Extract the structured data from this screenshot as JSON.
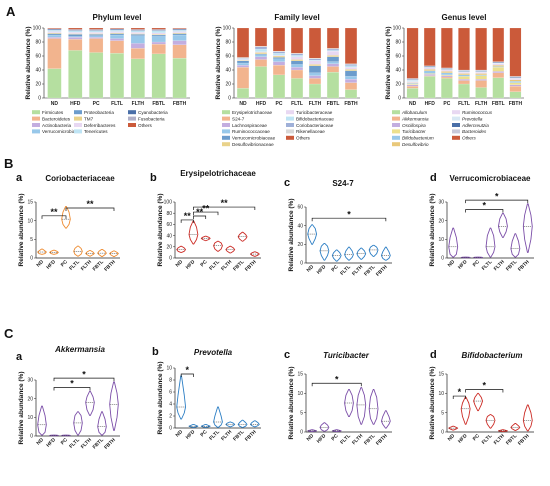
{
  "groups": [
    "ND",
    "HFD",
    "PC",
    "FLTL",
    "FLTH",
    "FBTL",
    "FBTH"
  ],
  "panel_labels": {
    "A": "A",
    "B": "B",
    "C": "C"
  },
  "colors": {
    "Firmicutes": "#b5dfa0",
    "Bacteroidetes": "#f2b48e",
    "Actinobacteria": "#c3aee0",
    "Verrucomicrobia": "#98c8ea",
    "Proteobacteria": "#6c9ccc",
    "TM7": "#e9d28a",
    "Deferribacteres": "#e8d8f2",
    "Tenericutes": "#bfe4f4",
    "Cyanobacteria": "#4a6fa8",
    "Fusobacteria": "#b0b0c8",
    "Others": "#cb5a3a",
    "Erysipelotrichaceae": "#b5dfa0",
    "S24-7": "#f2b48e",
    "Lachnospiraceae": "#c3aee0",
    "Ruminococcaceae": "#98c8ea",
    "Verrucomicrobiaceae": "#6c9ccc",
    "Desulfovibrionaceae": "#e9d28a",
    "Turicibacteraceae": "#e8d8f2",
    "Bifidobacteriaceae": "#bfe4f4",
    "Coriobacteriaceae": "#9fb0d8",
    "Rikenellaceae": "#d8d8d8",
    "Allobaculum": "#b5dfa0",
    "Akkermansia": "#f2b48e",
    "Oscillospira": "#c3aee0",
    "Turicibacter": "#ece08e",
    "Bifidobacterium": "#98c8ea",
    "Desulfovibrio": "#e9c87a",
    "Ruminococcus": "#e8d8f2",
    "Prevotella": "#d8e8f4",
    "Adlercreutzia": "#4a6fa8",
    "Bacteroides": "#c8c8d8"
  },
  "chart_data": [
    {
      "id": "A1",
      "type": "bar",
      "stacked": true,
      "title": "Phylum level",
      "ylabel": "Relative abundance (%)",
      "ylim": [
        0,
        100
      ],
      "yticks": [
        0,
        20,
        40,
        60,
        80,
        100
      ],
      "categories": [
        "ND",
        "HFD",
        "PC",
        "FLTL",
        "FLTH",
        "FBTL",
        "FBTH"
      ],
      "series": [
        {
          "name": "Firmicutes",
          "values": [
            42,
            68,
            65,
            64,
            56,
            63,
            57
          ]
        },
        {
          "name": "Bacteroidetes",
          "values": [
            43,
            16,
            20,
            18,
            15,
            14,
            19
          ]
        },
        {
          "name": "Actinobacteria",
          "values": [
            2,
            3,
            2,
            3,
            7,
            3,
            6
          ]
        },
        {
          "name": "Verrucomicrobia",
          "values": [
            3,
            1,
            2,
            5,
            11,
            8,
            8
          ]
        },
        {
          "name": "Proteobacteria",
          "values": [
            2,
            3,
            2,
            2,
            2,
            2,
            2
          ]
        },
        {
          "name": "TM7",
          "values": [
            1,
            1,
            1,
            1,
            1,
            1,
            1
          ]
        },
        {
          "name": "Deferribacteres",
          "values": [
            2,
            2,
            2,
            2,
            2,
            2,
            2
          ]
        },
        {
          "name": "Tenericutes",
          "values": [
            2,
            2,
            2,
            2,
            2,
            3,
            2
          ]
        },
        {
          "name": "Cyanobacteria",
          "values": [
            1,
            1,
            1,
            1,
            1,
            1,
            1
          ]
        },
        {
          "name": "Fusobacteria",
          "values": [
            1,
            1,
            1,
            1,
            1,
            1,
            1
          ]
        },
        {
          "name": "Others",
          "values": [
            1,
            2,
            2,
            1,
            2,
            2,
            1
          ]
        }
      ]
    },
    {
      "id": "A2",
      "type": "bar",
      "stacked": true,
      "title": "Family level",
      "ylabel": "Relative abundance (%)",
      "ylim": [
        0,
        100
      ],
      "yticks": [
        0,
        20,
        40,
        60,
        80,
        100
      ],
      "categories": [
        "ND",
        "HFD",
        "PC",
        "FLTL",
        "FLTH",
        "FBTL",
        "FBTH"
      ],
      "series": [
        {
          "name": "Erysipelotrichaceae",
          "values": [
            14,
            45,
            33,
            28,
            20,
            37,
            12
          ]
        },
        {
          "name": "S24-7",
          "values": [
            30,
            10,
            14,
            12,
            8,
            8,
            10
          ]
        },
        {
          "name": "Lachnospiraceae",
          "values": [
            3,
            4,
            5,
            4,
            4,
            4,
            5
          ]
        },
        {
          "name": "Ruminococcaceae",
          "values": [
            3,
            3,
            4,
            4,
            4,
            3,
            4
          ]
        },
        {
          "name": "Verrucomicrobiaceae",
          "values": [
            3,
            1,
            2,
            5,
            10,
            7,
            8
          ]
        },
        {
          "name": "Desulfovibrionaceae",
          "values": [
            1,
            2,
            2,
            2,
            2,
            2,
            2
          ]
        },
        {
          "name": "Turicibacteraceae",
          "values": [
            1,
            1,
            1,
            4,
            5,
            6,
            3
          ]
        },
        {
          "name": "Bifidobacteriaceae",
          "values": [
            1,
            4,
            3,
            2,
            1,
            1,
            2
          ]
        },
        {
          "name": "Coriobacteriaceae",
          "values": [
            1,
            3,
            2,
            2,
            2,
            2,
            2
          ]
        },
        {
          "name": "Rikenellaceae",
          "values": [
            1,
            1,
            1,
            1,
            1,
            1,
            1
          ]
        },
        {
          "name": "Others",
          "values": [
            42,
            26,
            33,
            36,
            43,
            29,
            51
          ]
        }
      ]
    },
    {
      "id": "A3",
      "type": "bar",
      "stacked": true,
      "title": "Genus level",
      "ylabel": "Relative abundance (%)",
      "ylim": [
        0,
        100
      ],
      "yticks": [
        0,
        20,
        40,
        60,
        80,
        100
      ],
      "categories": [
        "ND",
        "HFD",
        "PC",
        "FLTL",
        "FLTH",
        "FBTL",
        "FBTH"
      ],
      "series": [
        {
          "name": "Allobaculum",
          "values": [
            14,
            31,
            28,
            20,
            15,
            29,
            9
          ]
        },
        {
          "name": "Akkermansia",
          "values": [
            3,
            1,
            2,
            5,
            10,
            7,
            8
          ]
        },
        {
          "name": "Oscillospira",
          "values": [
            2,
            2,
            2,
            2,
            2,
            2,
            2
          ]
        },
        {
          "name": "Turicibacter",
          "values": [
            1,
            1,
            1,
            4,
            5,
            6,
            3
          ]
        },
        {
          "name": "Bifidobacterium",
          "values": [
            1,
            4,
            3,
            2,
            1,
            1,
            2
          ]
        },
        {
          "name": "Desulfovibrio",
          "values": [
            1,
            2,
            2,
            2,
            2,
            2,
            2
          ]
        },
        {
          "name": "Ruminococcus",
          "values": [
            1,
            2,
            2,
            2,
            2,
            2,
            2
          ]
        },
        {
          "name": "Prevotella",
          "values": [
            3,
            1,
            1,
            1,
            1,
            1,
            1
          ]
        },
        {
          "name": "Adlercreutzia",
          "values": [
            1,
            1,
            1,
            1,
            1,
            1,
            1
          ]
        },
        {
          "name": "Bacteroides",
          "values": [
            1,
            1,
            1,
            1,
            1,
            1,
            1
          ]
        },
        {
          "name": "Others",
          "values": [
            72,
            54,
            57,
            60,
            60,
            48,
            69
          ]
        }
      ]
    },
    {
      "id": "Ba",
      "type": "violin",
      "letter": "a",
      "title": "Coriobacteriaceae",
      "ylabel": "Relative abundance (%)",
      "ylim": [
        0,
        15
      ],
      "yticks": [
        0,
        5,
        10,
        15
      ],
      "color": "#ee8a2e",
      "categories": [
        "ND",
        "HFD",
        "PC",
        "FLTL",
        "FLTH",
        "FBTL",
        "FBTH"
      ],
      "stats": [
        [
          1,
          1.2,
          1.6,
          1.9,
          2.4
        ],
        [
          1,
          1.2,
          1.5,
          1.8,
          2.1
        ],
        [
          8,
          9,
          10.4,
          12.3,
          13.8
        ],
        [
          0.5,
          1,
          1.8,
          2.6,
          3.2
        ],
        [
          0.5,
          0.9,
          1.2,
          1.6,
          2
        ],
        [
          0.4,
          0.9,
          1.3,
          1.8,
          2.3
        ],
        [
          0.4,
          0.8,
          1.2,
          1.5,
          1.9
        ]
      ],
      "brackets": [
        {
          "from": "ND",
          "to": "PC",
          "y": 11.3,
          "label": "**"
        },
        {
          "from": "PC",
          "to": "FBTH",
          "y": 13.4,
          "label": "**"
        }
      ]
    },
    {
      "id": "Bb",
      "type": "violin",
      "letter": "b",
      "title": "Erysipelotrichaceae",
      "ylabel": "Relative abundance (%)",
      "ylim": [
        0,
        100
      ],
      "yticks": [
        0,
        20,
        40,
        60,
        80,
        100
      ],
      "color": "#cc2b25",
      "categories": [
        "ND",
        "HFD",
        "PC",
        "FLTL",
        "FLTH",
        "FBTL",
        "FBTH"
      ],
      "stats": [
        [
          10,
          12,
          15,
          18,
          21
        ],
        [
          25,
          33,
          42,
          55,
          66
        ],
        [
          31,
          33,
          35,
          37,
          39
        ],
        [
          12,
          16,
          22,
          27,
          30
        ],
        [
          9,
          12,
          15,
          18,
          21
        ],
        [
          30,
          34,
          38,
          42,
          46
        ],
        [
          3,
          5,
          7,
          9,
          11
        ]
      ],
      "brackets": [
        {
          "from": "ND",
          "to": "HFD",
          "y": 68,
          "label": "**"
        },
        {
          "from": "HFD",
          "to": "PC",
          "y": 75,
          "label": "**"
        },
        {
          "from": "HFD",
          "to": "FLTL",
          "y": 82,
          "label": "**"
        },
        {
          "from": "HFD",
          "to": "FBTH",
          "y": 91,
          "label": "**"
        }
      ]
    },
    {
      "id": "Bc",
      "type": "violin",
      "letter": "c",
      "title": "S24-7",
      "ylabel": "Relative abundance (%)",
      "ylim": [
        0,
        60
      ],
      "yticks": [
        0,
        20,
        40,
        60
      ],
      "color": "#2c7ec4",
      "categories": [
        "ND",
        "HFD",
        "PC",
        "FLTL",
        "FLTH",
        "FBTL",
        "FBTH"
      ],
      "stats": [
        [
          20,
          26,
          31,
          37,
          41
        ],
        [
          3,
          8,
          13,
          18,
          21
        ],
        [
          2,
          5,
          8,
          11,
          14
        ],
        [
          3,
          6,
          9,
          13,
          17
        ],
        [
          4,
          7,
          10,
          13,
          16
        ],
        [
          7,
          10,
          14,
          17,
          19
        ],
        [
          3,
          5,
          8,
          12,
          17
        ]
      ],
      "brackets": [
        {
          "from": "ND",
          "to": "FBTH",
          "y": 48,
          "label": "*"
        }
      ]
    },
    {
      "id": "Bd",
      "type": "violin",
      "letter": "d",
      "title": "Verrucomicrobiaceae",
      "ylabel": "Relative abundance (%)",
      "ylim": [
        0,
        30
      ],
      "yticks": [
        0,
        10,
        20,
        30
      ],
      "color": "#7b4ea8",
      "categories": [
        "ND",
        "HFD",
        "PC",
        "FLTL",
        "FLTH",
        "FBTL",
        "FBTH"
      ],
      "stats": [
        [
          0.5,
          2,
          6,
          11,
          16
        ],
        [
          0.1,
          0.2,
          0.3,
          0.4,
          0.5
        ],
        [
          0.1,
          0.2,
          0.3,
          0.4,
          0.5
        ],
        [
          0.5,
          3,
          6,
          12,
          16
        ],
        [
          11,
          14,
          17,
          21,
          24
        ],
        [
          0.5,
          2,
          5,
          9,
          13
        ],
        [
          3,
          10,
          17,
          23,
          29
        ]
      ],
      "brackets": [
        {
          "from": "HFD",
          "to": "FLTH",
          "y": 26,
          "label": "*"
        },
        {
          "from": "HFD",
          "to": "FBTH",
          "y": 31,
          "label": "*"
        }
      ]
    },
    {
      "id": "Ca",
      "type": "violin",
      "letter": "a",
      "title": "Akkermansia",
      "ylabel": "Relative abundance (%)",
      "ylim": [
        0,
        30
      ],
      "yticks": [
        0,
        10,
        20,
        30
      ],
      "color": "#7b4ea8",
      "categories": [
        "ND",
        "HFD",
        "PC",
        "FLTL",
        "FLTH",
        "FBTL",
        "FBTH"
      ],
      "stats": [
        [
          0.5,
          2,
          6,
          11,
          16
        ],
        [
          0.1,
          0.2,
          0.3,
          0.4,
          0.5
        ],
        [
          0.1,
          0.2,
          0.3,
          0.4,
          0.5
        ],
        [
          0.5,
          3,
          7,
          11,
          13
        ],
        [
          11,
          14,
          18,
          21,
          24
        ],
        [
          0.5,
          2,
          5,
          9,
          13
        ],
        [
          3,
          10,
          17,
          23,
          29
        ]
      ],
      "brackets": [
        {
          "from": "HFD",
          "to": "FLTH",
          "y": 26,
          "label": "*"
        },
        {
          "from": "HFD",
          "to": "FBTH",
          "y": 31,
          "label": "*"
        }
      ]
    },
    {
      "id": "Cb",
      "type": "violin",
      "letter": "b",
      "title": "Prevotella",
      "ylabel": "Relative abundance (%)",
      "ylim": [
        0,
        10
      ],
      "yticks": [
        0,
        2,
        4,
        6,
        8,
        10
      ],
      "color": "#2c7ec4",
      "categories": [
        "ND",
        "HFD",
        "PC",
        "FLTL",
        "FLTH",
        "FBTL",
        "FBTH"
      ],
      "stats": [
        [
          1.5,
          2.5,
          3.5,
          5.5,
          8.7
        ],
        [
          0.1,
          0.2,
          0.3,
          0.4,
          0.6
        ],
        [
          0.1,
          0.2,
          0.3,
          0.4,
          0.6
        ],
        [
          0.1,
          0.5,
          1,
          2,
          3.5
        ],
        [
          0.2,
          0.4,
          0.6,
          0.8,
          1
        ],
        [
          0.1,
          0.3,
          0.6,
          0.9,
          1.3
        ],
        [
          0.2,
          0.4,
          0.6,
          0.9,
          1.2
        ]
      ],
      "brackets": [
        {
          "from": "ND",
          "to": "HFD",
          "y": 9,
          "label": "*"
        }
      ]
    },
    {
      "id": "Cc",
      "type": "violin",
      "letter": "c",
      "title": "Turicibacter",
      "ylabel": "Relative abundance (%)",
      "ylim": [
        0,
        15
      ],
      "yticks": [
        0,
        5,
        10,
        15
      ],
      "color": "#7b4ea8",
      "categories": [
        "ND",
        "HFD",
        "PC",
        "FLTL",
        "FLTH",
        "FBTL",
        "FBTH"
      ],
      "stats": [
        [
          0.1,
          0.2,
          0.3,
          0.4,
          0.6
        ],
        [
          0.2,
          0.6,
          1.2,
          1.8,
          2.4
        ],
        [
          0.1,
          0.2,
          0.3,
          0.4,
          0.6
        ],
        [
          4,
          5.5,
          7.5,
          9.5,
          11
        ],
        [
          2,
          4,
          7,
          9.5,
          11.5
        ],
        [
          2,
          3.5,
          6,
          9,
          11
        ],
        [
          1,
          2,
          2.8,
          4,
          5.5
        ]
      ],
      "brackets": [
        {
          "from": "ND",
          "to": "FLTH",
          "y": 12.6,
          "label": "*"
        }
      ]
    },
    {
      "id": "Cd",
      "type": "violin",
      "letter": "d",
      "title": "Bifidobacterium",
      "ylabel": "Relative abundance (%)",
      "ylim": [
        0,
        15
      ],
      "yticks": [
        0,
        5,
        10,
        15
      ],
      "color": "#cc2b25",
      "categories": [
        "ND",
        "HFD",
        "PC",
        "FLTL",
        "FLTH",
        "FBTL",
        "FBTH"
      ],
      "stats": [
        [
          0.5,
          0.8,
          1,
          1.2,
          1.5
        ],
        [
          2,
          4,
          6,
          7.5,
          9
        ],
        [
          5.5,
          7,
          8,
          9,
          10
        ],
        [
          1,
          2,
          3,
          4,
          4.5
        ],
        [
          0.1,
          0.2,
          0.3,
          0.4,
          0.6
        ],
        [
          0.4,
          0.8,
          1.2,
          1.6,
          2.2
        ],
        [
          0.3,
          1.5,
          3,
          5,
          7
        ]
      ],
      "brackets": [
        {
          "from": "ND",
          "to": "HFD",
          "y": 9.3,
          "label": "*"
        },
        {
          "from": "HFD",
          "to": "FLTH",
          "y": 11,
          "label": "*"
        }
      ]
    }
  ]
}
